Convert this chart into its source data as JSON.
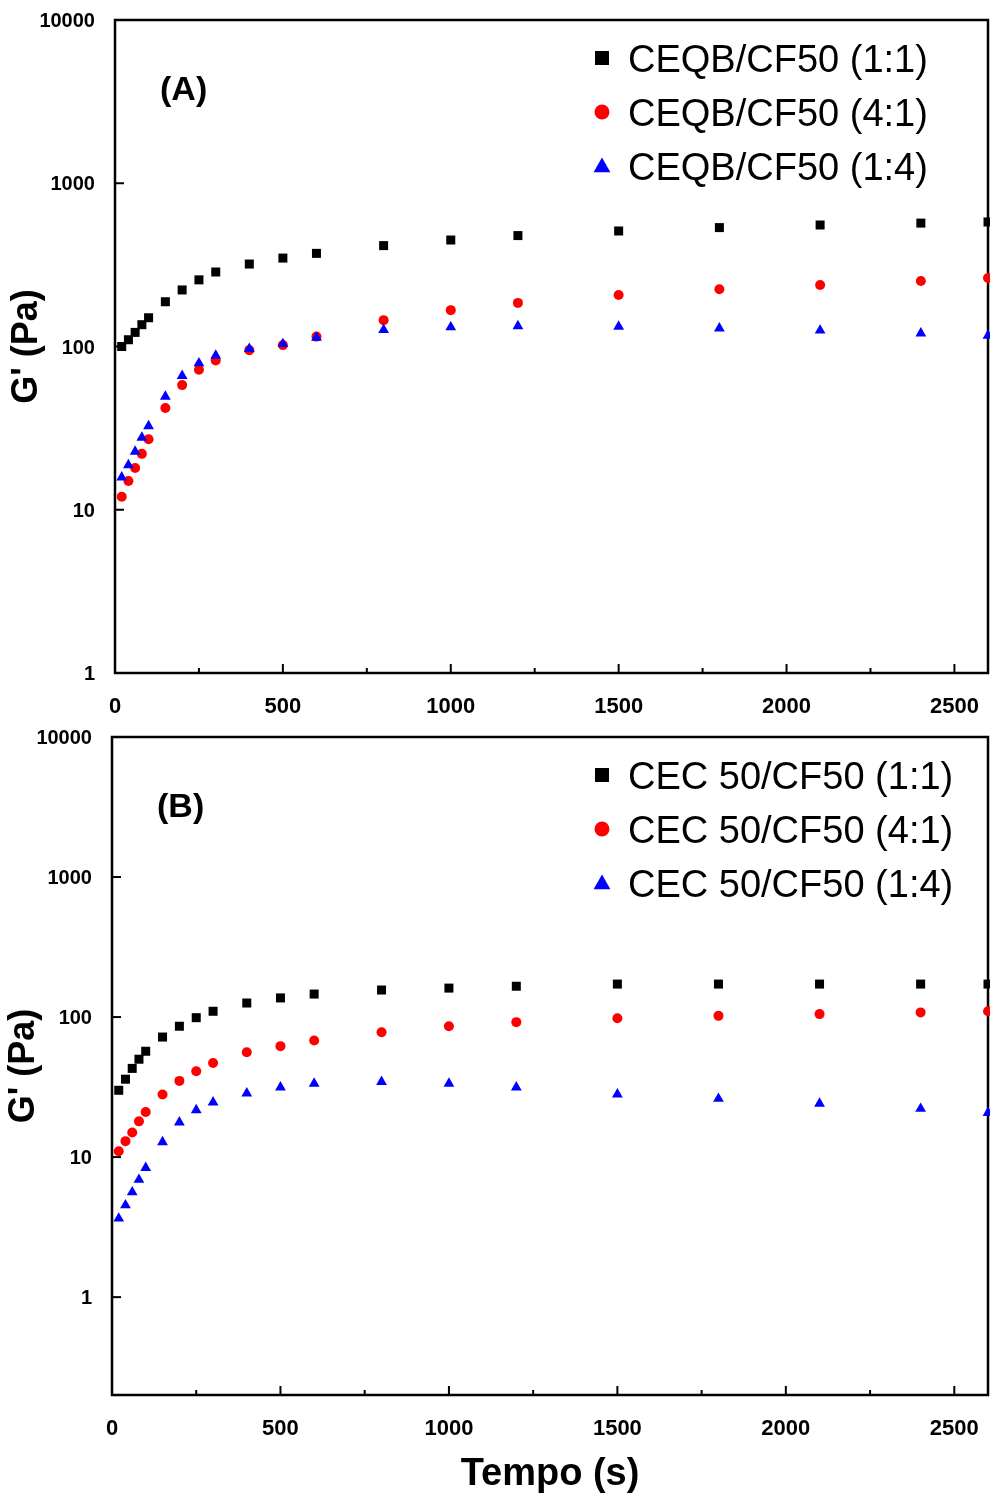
{
  "chart_data": [
    {
      "type": "scatter",
      "ylabel": "G' (Pa)",
      "annotations": [
        "(A)"
      ],
      "log": "y",
      "legend": "top right",
      "xlim": [
        0,
        2600
      ],
      "xticks": [
        0,
        {
          "value": 250,
          "label": null
        },
        500,
        {
          "value": 750,
          "label": null
        },
        1000,
        {
          "value": 1250,
          "label": null
        },
        1500,
        {
          "value": 1750,
          "label": null
        },
        2000,
        {
          "value": 2250,
          "label": null
        },
        2500
      ],
      "ylim": [
        1,
        10000
      ],
      "yticks": [
        1,
        10,
        100,
        1000,
        10000
      ],
      "x": [
        20,
        40,
        60,
        80,
        100,
        150,
        200,
        250,
        300,
        400,
        500,
        600,
        800,
        1000,
        1200,
        1500,
        1800,
        2100,
        2400,
        2600
      ],
      "series": [
        {
          "name": "CEQB/CF50 (1:1)",
          "color": "#000000",
          "marker": "square",
          "values": [
            100,
            110,
            122,
            136,
            150,
            188,
            222,
            256,
            286,
            320,
            348,
            372,
            415,
            449,
            478,
            510,
            535,
            555,
            570,
            579
          ]
        },
        {
          "name": "CEQB/CF50 (4:1)",
          "color": "#ff0000",
          "marker": "circle",
          "values": [
            12,
            15,
            18,
            22,
            27,
            42,
            58,
            72,
            82,
            95,
            102,
            115,
            145,
            167,
            185,
            207,
            224,
            238,
            252,
            263
          ]
        },
        {
          "name": "CEQB/CF50 (1:4)",
          "color": "#0000ff",
          "marker": "triangle",
          "values": [
            16,
            19,
            23,
            28,
            33,
            50,
            67,
            80,
            89,
            98,
            105,
            115,
            128,
            133,
            135,
            134,
            131,
            127,
            122,
            118
          ]
        }
      ]
    },
    {
      "type": "scatter",
      "xlabel": "Tempo (s)",
      "ylabel": "G' (Pa)",
      "annotations": [
        "(B)"
      ],
      "log": "y",
      "legend": "top right",
      "xlim": [
        0,
        2600
      ],
      "xticks": [
        0,
        {
          "value": 250,
          "label": null
        },
        500,
        {
          "value": 750,
          "label": null
        },
        1000,
        {
          "value": 1250,
          "label": null
        },
        1500,
        {
          "value": 1750,
          "label": null
        },
        2000,
        {
          "value": 2250,
          "label": null
        },
        2500
      ],
      "ylim": [
        0.2,
        10000
      ],
      "yticks": [
        1,
        10,
        100,
        1000,
        10000
      ],
      "x": [
        20,
        40,
        60,
        80,
        100,
        150,
        200,
        250,
        300,
        400,
        500,
        600,
        800,
        1000,
        1200,
        1500,
        1800,
        2100,
        2400,
        2600
      ],
      "series": [
        {
          "name": "CEC 50/CF50 (1:1)",
          "color": "#000000",
          "marker": "square",
          "values": [
            30,
            36,
            43,
            50,
            57,
            72,
            86,
            99,
            110,
            126,
            137,
            146,
            156,
            161,
            166,
            172,
            172,
            172,
            172,
            172
          ]
        },
        {
          "name": "CEC 50/CF50 (4:1)",
          "color": "#ff0000",
          "marker": "circle",
          "values": [
            11,
            13,
            15,
            18,
            21,
            28,
            35,
            41,
            47,
            56,
            62,
            68,
            78,
            86,
            92,
            98,
            102,
            105,
            108,
            110
          ]
        },
        {
          "name": "CEC 50/CF50 (1:4)",
          "color": "#0000ff",
          "marker": "triangle",
          "values": [
            3.7,
            4.6,
            5.7,
            7,
            8.5,
            13,
            18,
            22,
            25,
            29,
            32,
            34,
            35,
            34,
            32,
            28.5,
            26.5,
            24.5,
            22.5,
            21
          ]
        }
      ]
    }
  ]
}
